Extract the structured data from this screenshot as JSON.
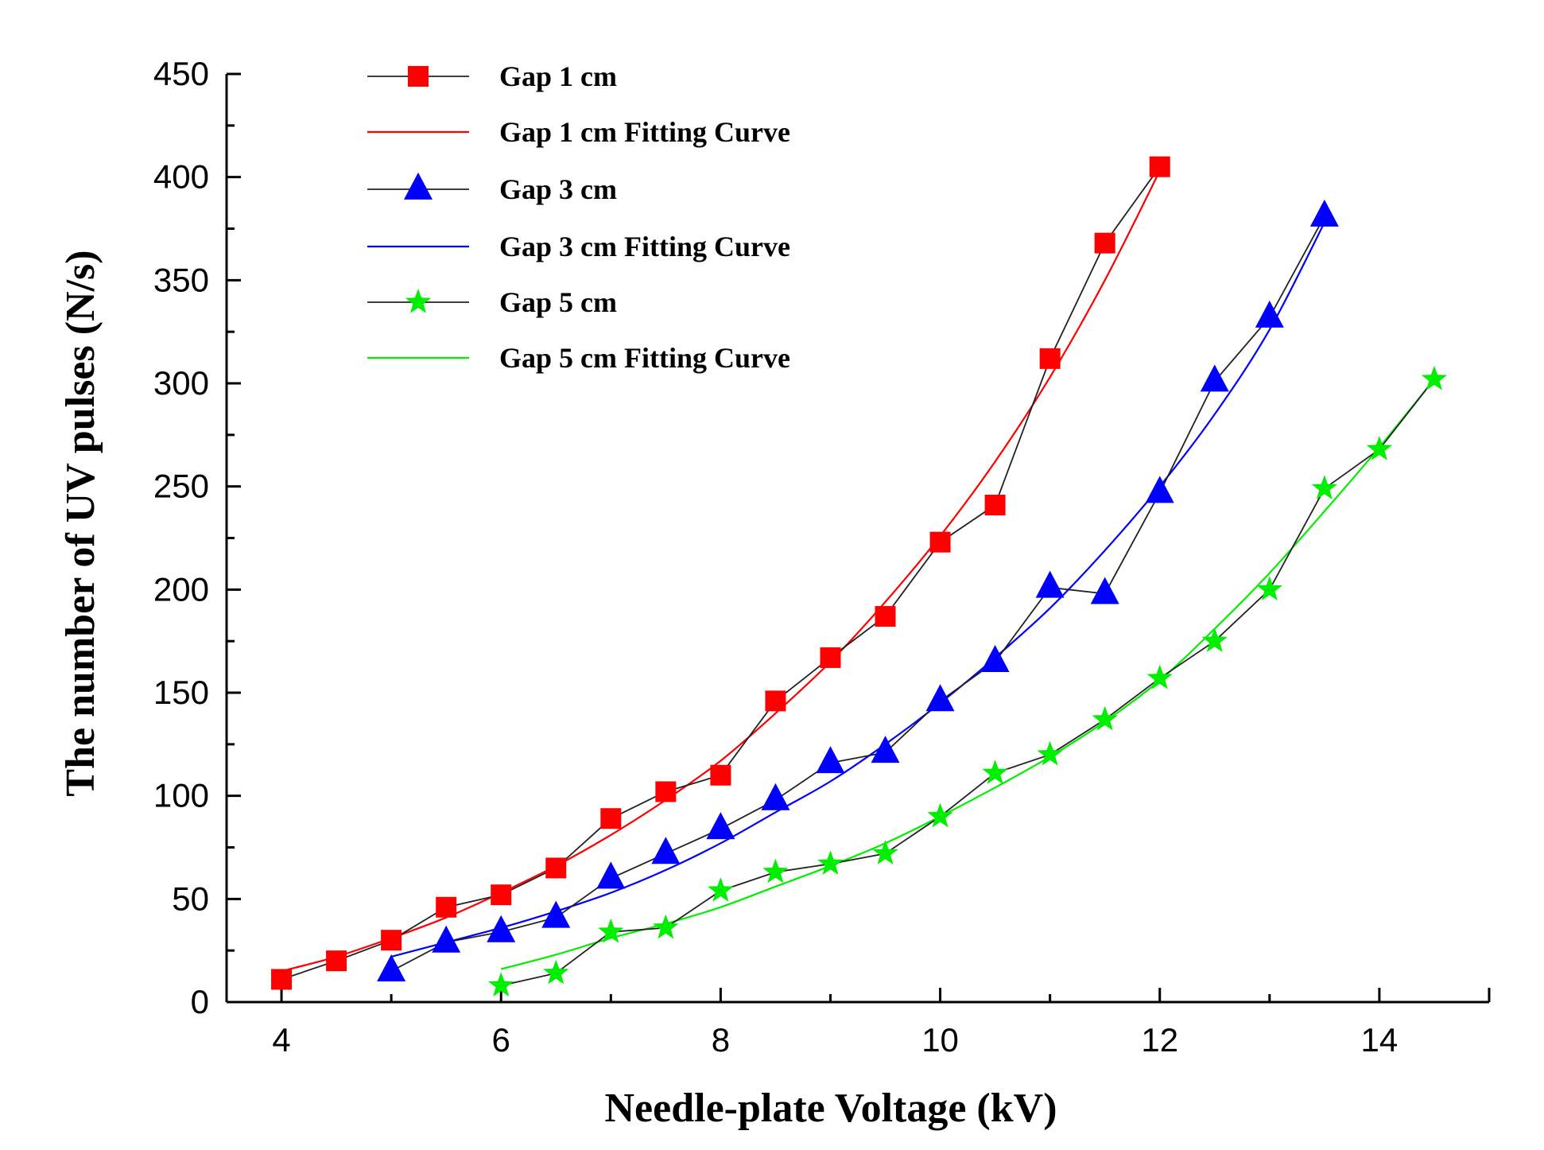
{
  "chart_data": {
    "type": "line",
    "title": "",
    "xlabel": "Needle-plate Voltage (kV)",
    "ylabel": "The number of UV pulses (N/s)",
    "xlim": [
      3.5,
      15
    ],
    "ylim": [
      0,
      450
    ],
    "xticks": [
      4,
      6,
      8,
      10,
      12,
      14
    ],
    "yticks": [
      0,
      50,
      100,
      150,
      200,
      250,
      300,
      350,
      400,
      450
    ],
    "grid": false,
    "legend_position": "top-left",
    "series": [
      {
        "name": "Gap 1 cm",
        "fit_name": "Gap 1 cm Fitting Curve",
        "color": "#ff0000",
        "marker": "square",
        "x": [
          4,
          4.5,
          5,
          5.5,
          6,
          6.5,
          7,
          7.5,
          8,
          8.5,
          9,
          9.5,
          10,
          10.5,
          11,
          11.5,
          12
        ],
        "values": [
          11,
          20,
          30,
          46,
          52,
          65,
          89,
          102,
          110,
          146,
          167,
          187,
          223,
          241,
          312,
          368,
          405
        ],
        "fit_x": [
          4,
          4.5,
          5,
          5.5,
          6,
          6.5,
          7,
          7.5,
          8,
          8.5,
          9,
          9.5,
          10,
          10.5,
          11,
          11.5,
          12
        ],
        "fit_values": [
          15,
          22,
          31,
          41,
          53,
          66,
          81,
          98,
          117,
          140,
          165,
          194,
          226,
          262,
          303,
          350,
          403
        ]
      },
      {
        "name": "Gap 3 cm",
        "fit_name": "Gap 3 cm Fitting Curve",
        "color": "#0000ff",
        "marker": "triangle",
        "x": [
          5,
          5.5,
          6,
          6.5,
          7,
          7.5,
          8,
          8.5,
          9,
          9.5,
          10,
          10.5,
          11,
          11.5,
          12,
          12.5,
          13,
          13.5
        ],
        "values": [
          15,
          29,
          34,
          41,
          60,
          72,
          84,
          98,
          116,
          121,
          146,
          165,
          201,
          198,
          247,
          301,
          332,
          381
        ],
        "fit_x": [
          5,
          5.5,
          6,
          6.5,
          7,
          7.5,
          8,
          8.5,
          9,
          9.5,
          10,
          10.5,
          11,
          11.5,
          12,
          12.5,
          13,
          13.5
        ],
        "fit_values": [
          22,
          29,
          36,
          44,
          53,
          64,
          77,
          92,
          107,
          125,
          145,
          167,
          191,
          219,
          250,
          285,
          326,
          378
        ]
      },
      {
        "name": "Gap 5 cm",
        "fit_name": "Gap 5 cm Fitting Curve",
        "color": "#00ee00",
        "marker": "star",
        "x": [
          6,
          6.5,
          7,
          7.5,
          8,
          8.5,
          9,
          9.5,
          10,
          10.5,
          11,
          11.5,
          12,
          12.5,
          13,
          13.5,
          14,
          14.5
        ],
        "values": [
          8,
          14,
          34,
          36,
          54,
          63,
          67,
          72,
          90,
          111,
          120,
          137,
          157,
          175,
          200,
          249,
          268,
          302
        ],
        "fit_x": [
          6,
          6.5,
          7,
          7.5,
          8,
          8.5,
          9,
          9.5,
          10,
          10.5,
          11,
          11.5,
          12,
          12.5,
          13,
          13.5,
          14,
          14.5
        ],
        "fit_values": [
          16,
          23,
          31,
          38,
          46,
          56,
          66,
          77,
          90,
          104,
          119,
          136,
          156,
          181,
          208,
          238,
          269,
          302
        ]
      }
    ]
  }
}
